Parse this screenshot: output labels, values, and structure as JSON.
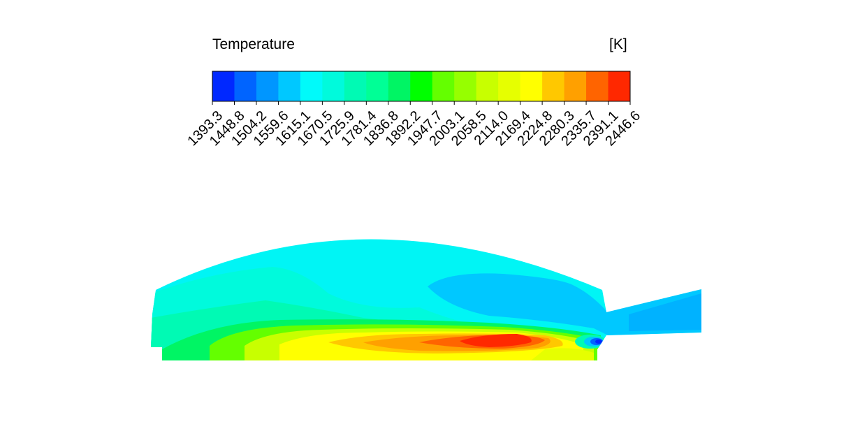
{
  "legend": {
    "title": "Temperature",
    "unit": "[K]",
    "tick_labels": [
      "1393.3",
      "1448.8",
      "1504.2",
      "1559.6",
      "1615.1",
      "1670.5",
      "1725.9",
      "1781.4",
      "1836.8",
      "1892.2",
      "1947.7",
      "2003.1",
      "2058.5",
      "2114.0",
      "2169.4",
      "2224.8",
      "2280.3",
      "2335.7",
      "2391.1",
      "2446.6"
    ],
    "colors": [
      "#0028ff",
      "#0064ff",
      "#0096ff",
      "#00c8ff",
      "#00fafa",
      "#00fadc",
      "#00fab4",
      "#00ff96",
      "#00f564",
      "#00ff00",
      "#64ff00",
      "#96ff00",
      "#c8ff00",
      "#e6ff00",
      "#ffff00",
      "#ffc800",
      "#ffa000",
      "#ff6400",
      "#ff2800"
    ]
  },
  "field": {
    "palette": {
      "background_cyan": "#00f5f5",
      "cold_stream": "#00c8ff",
      "cold_core": "#0032ff",
      "warm_teal": "#00faC8",
      "flame_green": "#00f564",
      "flame_yellow": "#ffff00",
      "flame_orange": "#ffa000",
      "flame_hot": "#ff2800"
    }
  }
}
